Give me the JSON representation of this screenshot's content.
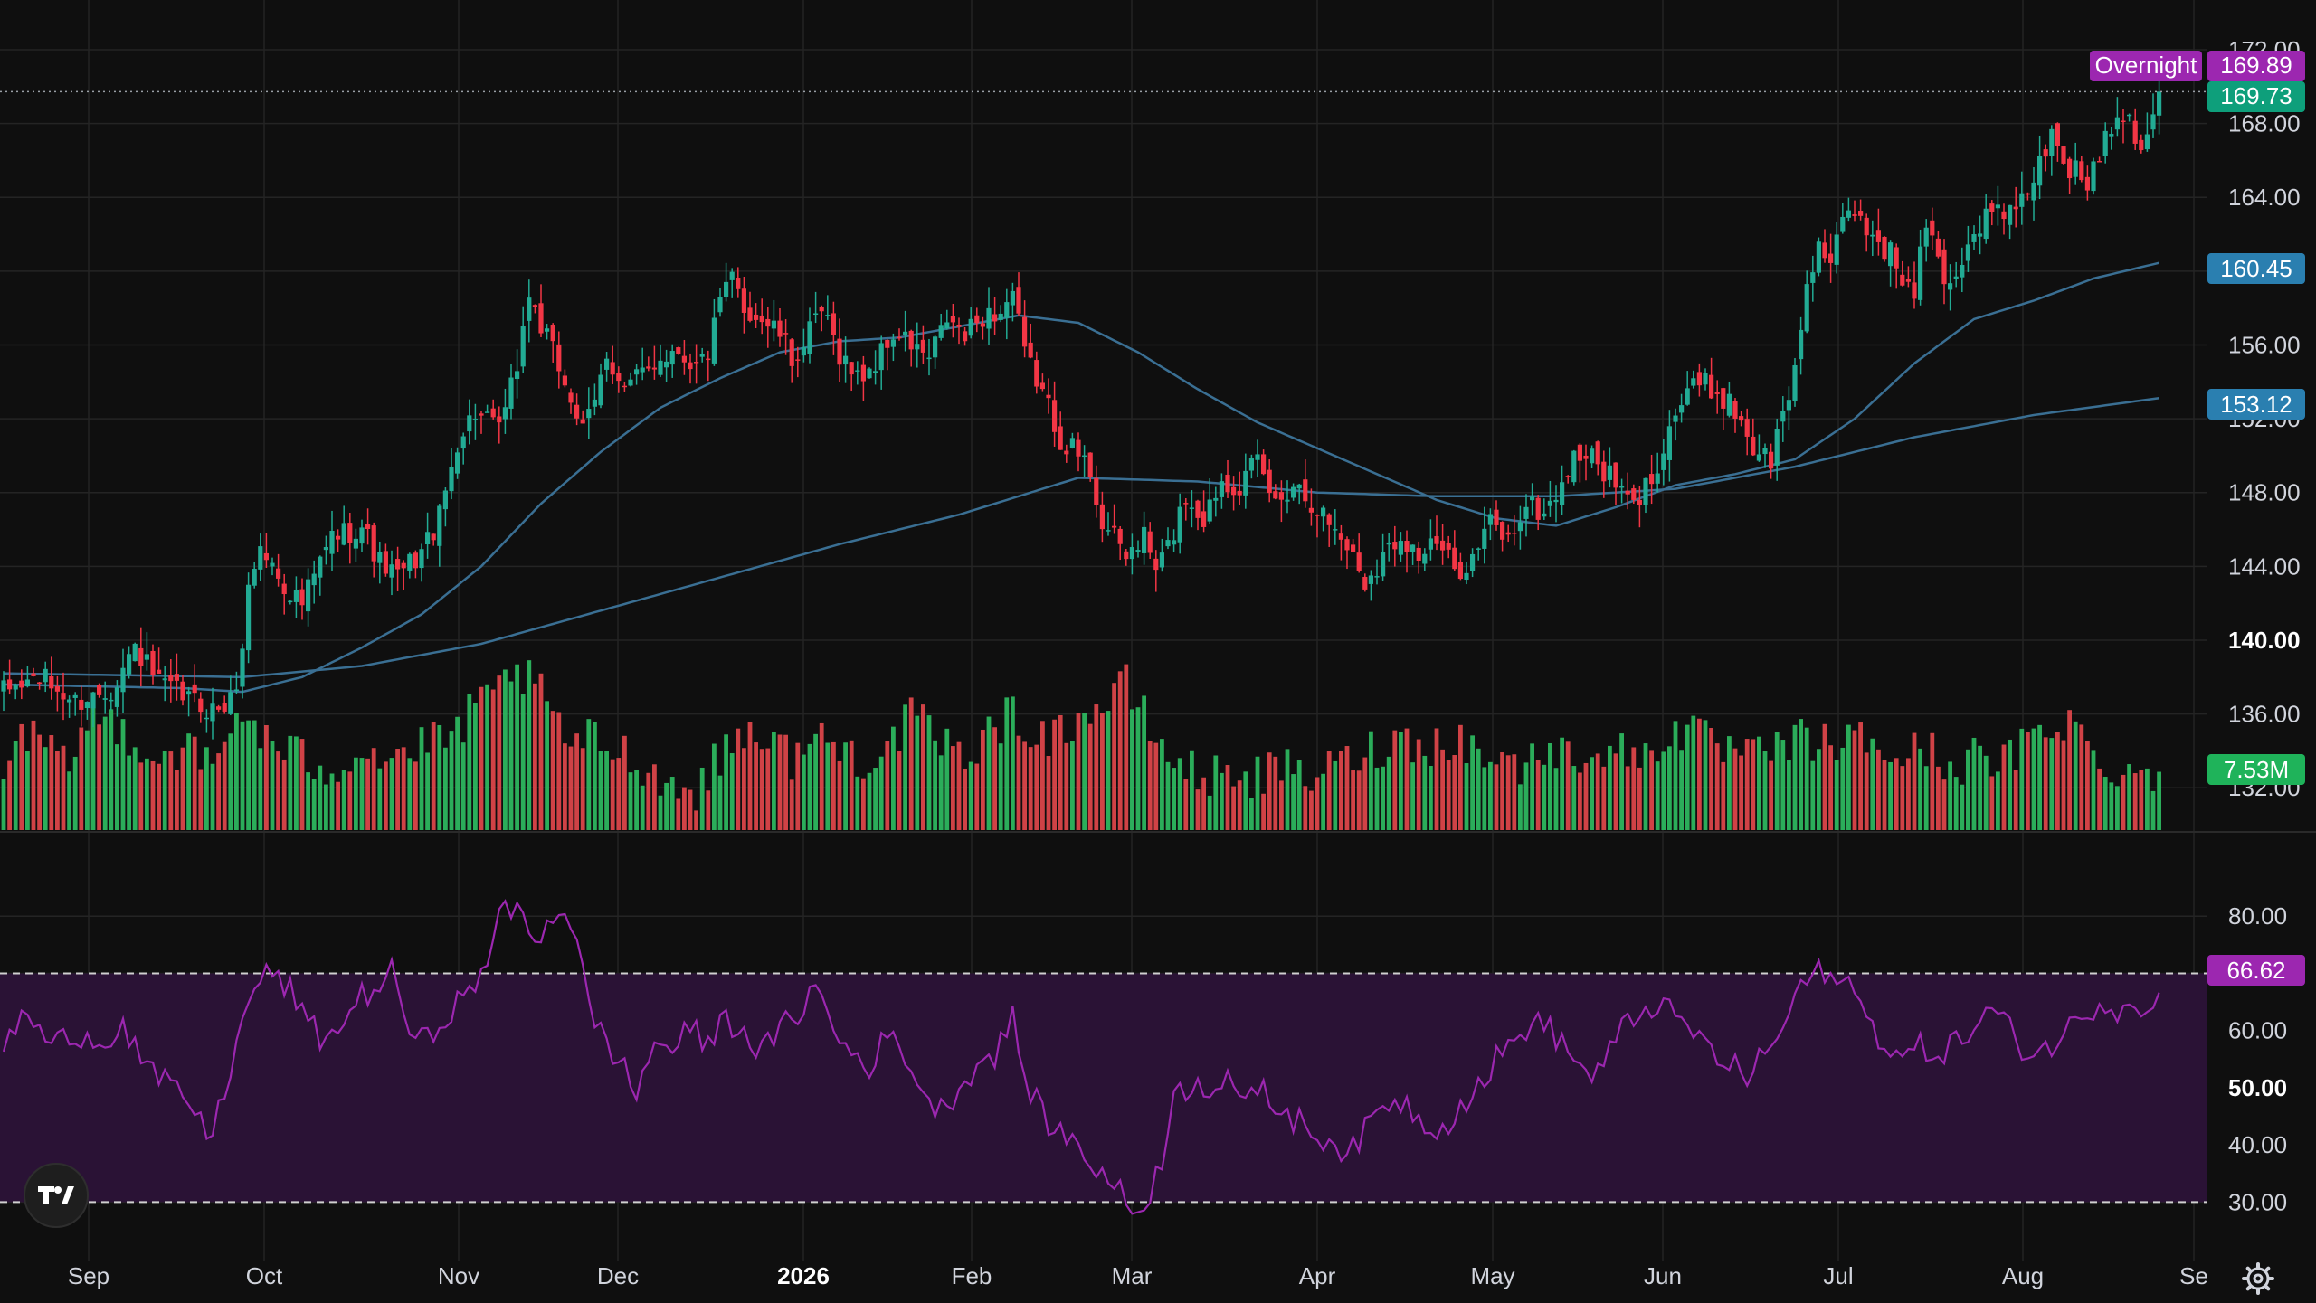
{
  "colors": {
    "background": "#0f0f0f",
    "grid": "#242424",
    "up": "#22ab94",
    "down": "#f23645",
    "volume_up": "#2fbf63",
    "volume_down": "#e5484d",
    "ma_line": "#3a6f93",
    "rsi_line": "#9c27b0",
    "rsi_band": "#2a1235",
    "overnight_badge": "#9c27b0",
    "price_badge": "#0e9f7b",
    "ma_badge": "#2a7fb0",
    "volume_badge": "#1fb35a",
    "rsi_badge": "#9c27b0",
    "axis_text": "#d1d4dc"
  },
  "chart_data": {
    "type": "candlestick",
    "price_axis": {
      "min": 130,
      "max": 172,
      "ticks": [
        "172.00",
        "168.00",
        "164.00",
        "160.00",
        "156.00",
        "152.00",
        "148.00",
        "144.00",
        "140.00",
        "136.00",
        "132.00"
      ],
      "bold_tick": "140.00"
    },
    "rsi_axis": {
      "min": 22,
      "max": 90,
      "ticks": [
        "80.00",
        "70.00",
        "60.00",
        "50.00",
        "40.00",
        "30.00"
      ],
      "bold_tick": "50.00",
      "band_upper": 70,
      "band_lower": 30
    },
    "time_axis": {
      "labels": [
        "Sep",
        "Oct",
        "Nov",
        "Dec",
        "2026",
        "Feb",
        "Mar",
        "Apr",
        "May",
        "Jun",
        "Jul",
        "Aug",
        "Se"
      ],
      "bold_label": "2026"
    },
    "price_anchors": [
      [
        0,
        137.2
      ],
      [
        6,
        138.0
      ],
      [
        12,
        136.6
      ],
      [
        18,
        137.4
      ],
      [
        22,
        139.6
      ],
      [
        26,
        137.6
      ],
      [
        30,
        137.0
      ],
      [
        35,
        136.2
      ],
      [
        38,
        136.6
      ],
      [
        40,
        139.2
      ],
      [
        41,
        143.2
      ],
      [
        43,
        145.0
      ],
      [
        47,
        143.0
      ],
      [
        50,
        142.0
      ],
      [
        55,
        145.6
      ],
      [
        60,
        146.2
      ],
      [
        63,
        144.2
      ],
      [
        66,
        143.4
      ],
      [
        70,
        144.8
      ],
      [
        73,
        146.6
      ],
      [
        76,
        150.8
      ],
      [
        79,
        152.4
      ],
      [
        82,
        151.4
      ],
      [
        84,
        152.2
      ],
      [
        86,
        155.0
      ],
      [
        88,
        158.8
      ],
      [
        90,
        157.0
      ],
      [
        93,
        154.8
      ],
      [
        95,
        153.2
      ],
      [
        97,
        151.2
      ],
      [
        99,
        152.8
      ],
      [
        101,
        155.6
      ],
      [
        104,
        153.6
      ],
      [
        107,
        154.4
      ],
      [
        110,
        155.4
      ],
      [
        113,
        155.8
      ],
      [
        116,
        154.8
      ],
      [
        118,
        155.6
      ],
      [
        120,
        158.2
      ],
      [
        122,
        159.6
      ],
      [
        124,
        158.0
      ],
      [
        127,
        157.4
      ],
      [
        130,
        156.6
      ],
      [
        132,
        155.2
      ],
      [
        134,
        156.0
      ],
      [
        137,
        157.8
      ],
      [
        140,
        155.6
      ],
      [
        143,
        154.2
      ],
      [
        146,
        155.0
      ],
      [
        149,
        156.6
      ],
      [
        152,
        156.0
      ],
      [
        155,
        155.2
      ],
      [
        158,
        157.4
      ],
      [
        161,
        156.4
      ],
      [
        164,
        157.6
      ],
      [
        167,
        157.8
      ],
      [
        169,
        158.8
      ],
      [
        171,
        155.4
      ],
      [
        173,
        154.2
      ],
      [
        175,
        152.6
      ],
      [
        177,
        151.0
      ],
      [
        179,
        150.4
      ],
      [
        182,
        149.2
      ],
      [
        184,
        146.4
      ],
      [
        186,
        145.4
      ],
      [
        188,
        144.6
      ],
      [
        191,
        145.6
      ],
      [
        193,
        143.8
      ],
      [
        195,
        145.0
      ],
      [
        198,
        147.8
      ],
      [
        201,
        146.6
      ],
      [
        204,
        148.8
      ],
      [
        207,
        148.4
      ],
      [
        210,
        149.6
      ],
      [
        213,
        147.4
      ],
      [
        216,
        148.6
      ],
      [
        219,
        147.6
      ],
      [
        222,
        146.4
      ],
      [
        225,
        145.2
      ],
      [
        228,
        143.2
      ],
      [
        231,
        144.6
      ],
      [
        234,
        145.8
      ],
      [
        237,
        144.6
      ],
      [
        240,
        145.2
      ],
      [
        243,
        143.8
      ],
      [
        246,
        144.4
      ],
      [
        249,
        146.4
      ],
      [
        252,
        145.4
      ],
      [
        255,
        147.4
      ],
      [
        258,
        146.8
      ],
      [
        261,
        148.6
      ],
      [
        264,
        150.2
      ],
      [
        267,
        149.6
      ],
      [
        270,
        148.4
      ],
      [
        273,
        147.2
      ],
      [
        276,
        148.8
      ],
      [
        279,
        151.6
      ],
      [
        282,
        153.6
      ],
      [
        285,
        153.8
      ],
      [
        288,
        153.2
      ],
      [
        291,
        152.0
      ],
      [
        293,
        150.4
      ],
      [
        296,
        149.8
      ],
      [
        298,
        152.2
      ],
      [
        300,
        154.6
      ],
      [
        302,
        159.4
      ],
      [
        304,
        161.6
      ],
      [
        306,
        160.0
      ],
      [
        308,
        162.6
      ],
      [
        310,
        163.2
      ],
      [
        313,
        162.0
      ],
      [
        316,
        161.0
      ],
      [
        318,
        159.6
      ],
      [
        320,
        158.6
      ],
      [
        322,
        162.8
      ],
      [
        324,
        160.4
      ],
      [
        326,
        159.2
      ],
      [
        328,
        160.8
      ],
      [
        331,
        162.6
      ],
      [
        334,
        163.4
      ],
      [
        337,
        163.0
      ],
      [
        339,
        164.4
      ],
      [
        341,
        165.8
      ],
      [
        343,
        167.2
      ],
      [
        346,
        165.6
      ],
      [
        349,
        164.8
      ],
      [
        352,
        167.4
      ],
      [
        354,
        168.8
      ],
      [
        356,
        168.4
      ],
      [
        358,
        166.8
      ],
      [
        360,
        168.6
      ],
      [
        361,
        169.73
      ]
    ],
    "volume_anchors": [
      [
        0,
        0.35
      ],
      [
        5,
        0.45
      ],
      [
        10,
        0.3
      ],
      [
        15,
        0.55
      ],
      [
        20,
        0.5
      ],
      [
        25,
        0.35
      ],
      [
        30,
        0.4
      ],
      [
        35,
        0.3
      ],
      [
        40,
        0.6
      ],
      [
        42,
        0.5
      ],
      [
        45,
        0.4
      ],
      [
        50,
        0.35
      ],
      [
        55,
        0.3
      ],
      [
        60,
        0.4
      ],
      [
        65,
        0.35
      ],
      [
        70,
        0.4
      ],
      [
        75,
        0.45
      ],
      [
        78,
        0.55
      ],
      [
        82,
        0.65
      ],
      [
        86,
        0.78
      ],
      [
        88,
        0.72
      ],
      [
        90,
        0.65
      ],
      [
        93,
        0.5
      ],
      [
        96,
        0.4
      ],
      [
        99,
        0.45
      ],
      [
        102,
        0.4
      ],
      [
        106,
        0.35
      ],
      [
        110,
        0.25
      ],
      [
        113,
        0.2
      ],
      [
        116,
        0.2
      ],
      [
        120,
        0.35
      ],
      [
        124,
        0.5
      ],
      [
        128,
        0.45
      ],
      [
        132,
        0.35
      ],
      [
        136,
        0.45
      ],
      [
        140,
        0.4
      ],
      [
        144,
        0.35
      ],
      [
        148,
        0.4
      ],
      [
        152,
        0.55
      ],
      [
        156,
        0.45
      ],
      [
        160,
        0.35
      ],
      [
        164,
        0.45
      ],
      [
        168,
        0.55
      ],
      [
        172,
        0.5
      ],
      [
        176,
        0.45
      ],
      [
        180,
        0.55
      ],
      [
        184,
        0.6
      ],
      [
        188,
        0.7
      ],
      [
        191,
        0.55
      ],
      [
        194,
        0.4
      ],
      [
        198,
        0.3
      ],
      [
        202,
        0.25
      ],
      [
        206,
        0.3
      ],
      [
        210,
        0.25
      ],
      [
        214,
        0.3
      ],
      [
        218,
        0.25
      ],
      [
        222,
        0.3
      ],
      [
        226,
        0.35
      ],
      [
        230,
        0.4
      ],
      [
        234,
        0.45
      ],
      [
        238,
        0.4
      ],
      [
        242,
        0.45
      ],
      [
        246,
        0.4
      ],
      [
        250,
        0.35
      ],
      [
        254,
        0.3
      ],
      [
        258,
        0.4
      ],
      [
        262,
        0.35
      ],
      [
        266,
        0.4
      ],
      [
        270,
        0.38
      ],
      [
        274,
        0.35
      ],
      [
        278,
        0.45
      ],
      [
        282,
        0.5
      ],
      [
        286,
        0.4
      ],
      [
        290,
        0.38
      ],
      [
        294,
        0.35
      ],
      [
        298,
        0.4
      ],
      [
        302,
        0.45
      ],
      [
        306,
        0.4
      ],
      [
        310,
        0.45
      ],
      [
        314,
        0.4
      ],
      [
        318,
        0.35
      ],
      [
        322,
        0.4
      ],
      [
        326,
        0.3
      ],
      [
        330,
        0.35
      ],
      [
        334,
        0.3
      ],
      [
        338,
        0.4
      ],
      [
        342,
        0.5
      ],
      [
        346,
        0.55
      ],
      [
        350,
        0.35
      ],
      [
        354,
        0.3
      ],
      [
        358,
        0.28
      ],
      [
        361,
        0.3
      ]
    ],
    "rsi_anchors": [
      [
        0,
        58
      ],
      [
        4,
        63
      ],
      [
        8,
        57
      ],
      [
        12,
        60
      ],
      [
        16,
        58
      ],
      [
        20,
        61
      ],
      [
        22,
        57
      ],
      [
        25,
        52
      ],
      [
        28,
        50
      ],
      [
        31,
        48
      ],
      [
        34,
        41
      ],
      [
        36,
        46
      ],
      [
        40,
        61
      ],
      [
        42,
        68
      ],
      [
        45,
        70
      ],
      [
        48,
        67
      ],
      [
        51,
        61
      ],
      [
        54,
        58
      ],
      [
        57,
        62
      ],
      [
        60,
        66
      ],
      [
        63,
        68
      ],
      [
        65,
        70
      ],
      [
        67,
        64
      ],
      [
        69,
        57
      ],
      [
        72,
        60
      ],
      [
        75,
        64
      ],
      [
        78,
        66
      ],
      [
        80,
        70
      ],
      [
        83,
        80
      ],
      [
        86,
        81
      ],
      [
        89,
        76
      ],
      [
        92,
        80
      ],
      [
        94,
        82
      ],
      [
        96,
        75
      ],
      [
        98,
        64
      ],
      [
        101,
        58
      ],
      [
        104,
        53
      ],
      [
        106,
        49
      ],
      [
        109,
        58
      ],
      [
        112,
        57
      ],
      [
        115,
        60
      ],
      [
        118,
        58
      ],
      [
        121,
        62
      ],
      [
        124,
        60
      ],
      [
        127,
        56
      ],
      [
        130,
        60
      ],
      [
        133,
        63
      ],
      [
        136,
        68
      ],
      [
        139,
        60
      ],
      [
        142,
        56
      ],
      [
        145,
        54
      ],
      [
        148,
        59
      ],
      [
        151,
        56
      ],
      [
        154,
        49
      ],
      [
        157,
        46
      ],
      [
        160,
        50
      ],
      [
        163,
        54
      ],
      [
        166,
        56
      ],
      [
        169,
        62
      ],
      [
        171,
        52
      ],
      [
        174,
        45
      ],
      [
        177,
        42
      ],
      [
        180,
        40
      ],
      [
        183,
        36
      ],
      [
        186,
        33
      ],
      [
        188,
        30
      ],
      [
        190,
        28
      ],
      [
        192,
        32
      ],
      [
        194,
        38
      ],
      [
        196,
        48
      ],
      [
        199,
        51
      ],
      [
        202,
        50
      ],
      [
        205,
        53
      ],
      [
        208,
        47
      ],
      [
        211,
        49
      ],
      [
        214,
        46
      ],
      [
        217,
        44
      ],
      [
        220,
        42
      ],
      [
        223,
        40
      ],
      [
        226,
        39
      ],
      [
        229,
        44
      ],
      [
        232,
        48
      ],
      [
        235,
        47
      ],
      [
        238,
        44
      ],
      [
        241,
        43
      ],
      [
        244,
        47
      ],
      [
        247,
        50
      ],
      [
        250,
        55
      ],
      [
        253,
        58
      ],
      [
        256,
        62
      ],
      [
        259,
        60
      ],
      [
        262,
        57
      ],
      [
        265,
        52
      ],
      [
        268,
        54
      ],
      [
        271,
        60
      ],
      [
        274,
        63
      ],
      [
        277,
        65
      ],
      [
        280,
        62
      ],
      [
        283,
        60
      ],
      [
        286,
        56
      ],
      [
        289,
        54
      ],
      [
        292,
        52
      ],
      [
        295,
        56
      ],
      [
        298,
        60
      ],
      [
        300,
        66
      ],
      [
        302,
        69
      ],
      [
        304,
        70
      ],
      [
        306,
        68
      ],
      [
        308,
        71
      ],
      [
        310,
        66
      ],
      [
        312,
        62
      ],
      [
        315,
        58
      ],
      [
        318,
        55
      ],
      [
        321,
        57
      ],
      [
        324,
        56
      ],
      [
        327,
        58
      ],
      [
        330,
        60
      ],
      [
        333,
        64
      ],
      [
        336,
        60
      ],
      [
        339,
        56
      ],
      [
        342,
        57
      ],
      [
        345,
        59
      ],
      [
        348,
        63
      ],
      [
        351,
        65
      ],
      [
        354,
        64
      ],
      [
        357,
        66
      ],
      [
        359,
        62
      ],
      [
        361,
        66.62
      ]
    ],
    "ma_fast_anchors": [
      [
        0,
        137.6
      ],
      [
        30,
        137.4
      ],
      [
        40,
        137.2
      ],
      [
        50,
        138.0
      ],
      [
        60,
        139.6
      ],
      [
        70,
        141.4
      ],
      [
        80,
        144.0
      ],
      [
        90,
        147.4
      ],
      [
        100,
        150.2
      ],
      [
        110,
        152.6
      ],
      [
        120,
        154.2
      ],
      [
        130,
        155.6
      ],
      [
        140,
        156.2
      ],
      [
        150,
        156.4
      ],
      [
        160,
        157.0
      ],
      [
        170,
        157.6
      ],
      [
        180,
        157.2
      ],
      [
        190,
        155.6
      ],
      [
        200,
        153.6
      ],
      [
        210,
        151.8
      ],
      [
        220,
        150.4
      ],
      [
        230,
        149.0
      ],
      [
        240,
        147.6
      ],
      [
        250,
        146.6
      ],
      [
        260,
        146.2
      ],
      [
        270,
        147.2
      ],
      [
        280,
        148.4
      ],
      [
        290,
        149.0
      ],
      [
        300,
        149.8
      ],
      [
        310,
        152.0
      ],
      [
        320,
        155.0
      ],
      [
        330,
        157.4
      ],
      [
        340,
        158.4
      ],
      [
        350,
        159.6
      ],
      [
        361,
        160.45
      ]
    ],
    "ma_slow_anchors": [
      [
        0,
        138.2
      ],
      [
        40,
        138.0
      ],
      [
        60,
        138.6
      ],
      [
        80,
        139.8
      ],
      [
        100,
        141.6
      ],
      [
        120,
        143.4
      ],
      [
        140,
        145.2
      ],
      [
        160,
        146.8
      ],
      [
        180,
        148.8
      ],
      [
        200,
        148.6
      ],
      [
        220,
        148.0
      ],
      [
        240,
        147.8
      ],
      [
        260,
        147.8
      ],
      [
        280,
        148.2
      ],
      [
        300,
        149.4
      ],
      [
        320,
        151.0
      ],
      [
        340,
        152.2
      ],
      [
        361,
        153.12
      ]
    ]
  },
  "badges": {
    "overnight_label": "Overnight",
    "overnight_value": "169.89",
    "last_price": "169.73",
    "ma_fast": "160.45",
    "ma_slow": "153.12",
    "volume": "7.53M",
    "rsi": "66.62"
  },
  "icons": {
    "logo": "tradingview-logo-icon",
    "settings": "gear-icon"
  }
}
